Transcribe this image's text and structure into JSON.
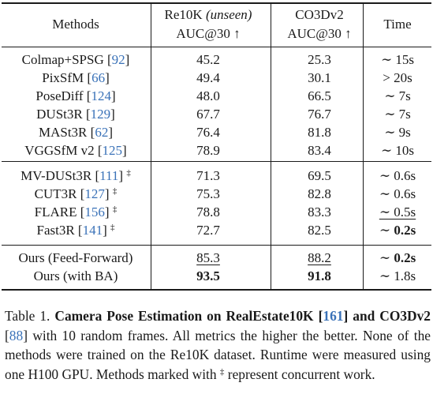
{
  "table": {
    "headers": {
      "methods": "Methods",
      "re10k_line1": "Re10K",
      "re10k_unseen": "(unseen)",
      "re10k_line2": "AUC@30 ↑",
      "co3d_line1": "CO3Dv2",
      "co3d_line2": "AUC@30 ↑",
      "time": "Time"
    },
    "group1": [
      {
        "name": "Colmap+SPSG",
        "ref": "92",
        "re10k": "45.2",
        "co3d": "25.3",
        "time": "∼ 15s"
      },
      {
        "name": "PixSfM",
        "ref": "66",
        "re10k": "49.4",
        "co3d": "30.1",
        "time": "> 20s"
      },
      {
        "name": "PoseDiff",
        "ref": "124",
        "re10k": "48.0",
        "co3d": "66.5",
        "time": "∼ 7s"
      },
      {
        "name": "DUSt3R",
        "ref": "129",
        "re10k": "67.7",
        "co3d": "76.7",
        "time": "∼ 7s"
      },
      {
        "name": "MASt3R",
        "ref": "62",
        "re10k": "76.4",
        "co3d": "81.8",
        "time": "∼ 9s"
      },
      {
        "name": "VGGSfM v2",
        "ref": "125",
        "re10k": "78.9",
        "co3d": "83.4",
        "time": "∼ 10s"
      }
    ],
    "group2": [
      {
        "name": "MV-DUSt3R",
        "ref": "111",
        "mark": "‡",
        "re10k": "71.3",
        "co3d": "69.5",
        "time": "∼ 0.6s"
      },
      {
        "name": "CUT3R",
        "ref": "127",
        "mark": "‡",
        "re10k": "75.3",
        "co3d": "82.8",
        "time": "∼ 0.6s"
      },
      {
        "name": "FLARE",
        "ref": "156",
        "mark": "‡",
        "re10k": "78.8",
        "co3d": "83.3",
        "time": "∼ 0.5s"
      },
      {
        "name": "Fast3R",
        "ref": "141",
        "mark": "‡",
        "re10k": "72.7",
        "co3d": "82.5",
        "time_tilde": "∼",
        "time": "0.2s"
      }
    ],
    "group3": [
      {
        "name": "Ours (Feed-Forward)",
        "re10k": "85.3",
        "co3d": "88.2",
        "time_tilde": "∼",
        "time": "0.2s"
      },
      {
        "name": "Ours (with BA)",
        "re10k": "93.5",
        "co3d": "91.8",
        "time": "∼ 1.8s"
      }
    ]
  },
  "caption": {
    "prefix": "Table 1.",
    "bold_a": "Camera Pose Estimation on RealEstate10K",
    "ref_a": "161",
    "bold_b": "and CO3Dv2",
    "ref_b": "88",
    "rest": "with 10 random frames. All metrics the higher the better. None of the methods were trained on the Re10K dataset. Runtime were measured using one H100 GPU. Methods marked with",
    "mark": "‡",
    "tail": "represent concurrent work."
  }
}
